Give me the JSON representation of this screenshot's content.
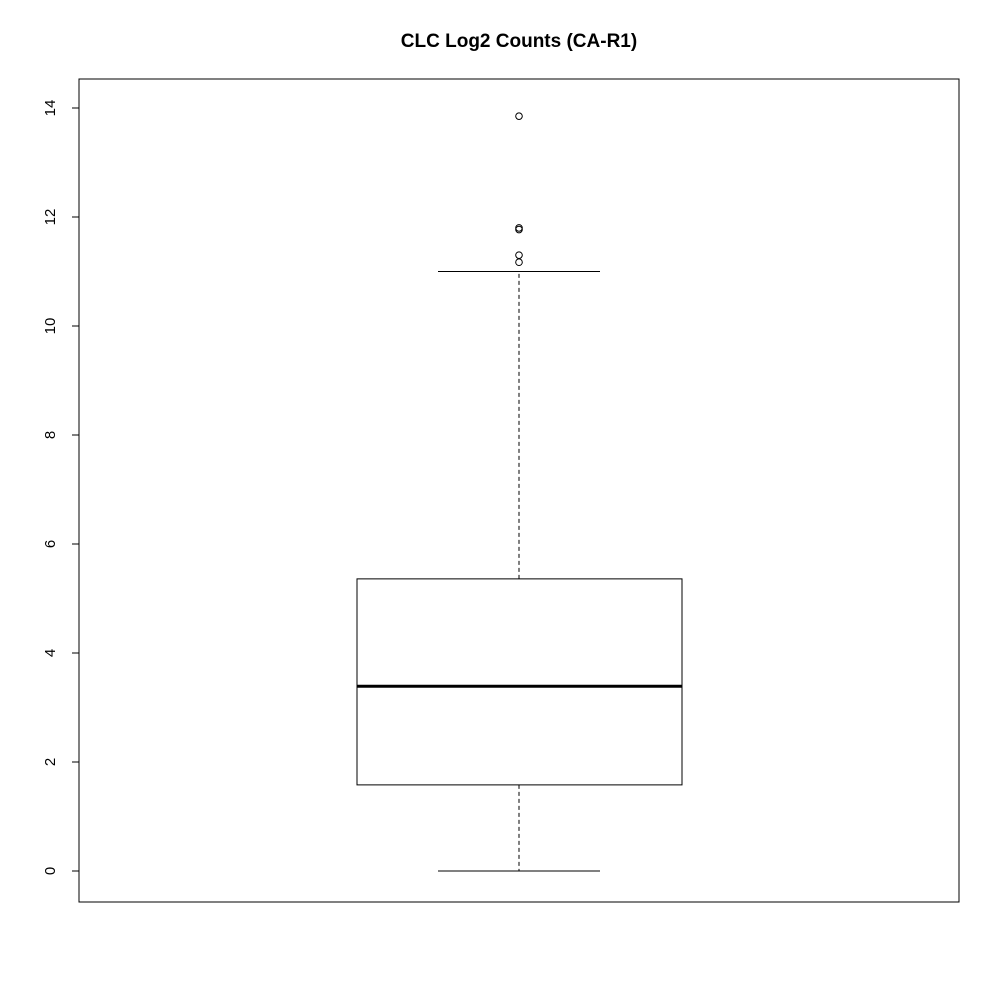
{
  "chart_data": {
    "type": "box",
    "title": "CLC Log2 Counts (CA-R1)",
    "xlabel": "",
    "ylabel": "",
    "ylim": [
      -0.5,
      14.6
    ],
    "y_ticks": [
      0,
      2,
      4,
      6,
      8,
      10,
      12,
      14
    ],
    "y_tick_labels": [
      "0",
      "2",
      "4",
      "6",
      "8",
      "10",
      "12",
      "14"
    ],
    "grid": false,
    "box": {
      "min": 0,
      "q1": 1.58,
      "median": 3.39,
      "q3": 5.36,
      "max": 11.0,
      "outliers": [
        11.17,
        11.3,
        11.77,
        11.8,
        13.85
      ]
    },
    "colors": {
      "stroke": "#000000",
      "fill": "#ffffff",
      "background": "#ffffff"
    }
  }
}
